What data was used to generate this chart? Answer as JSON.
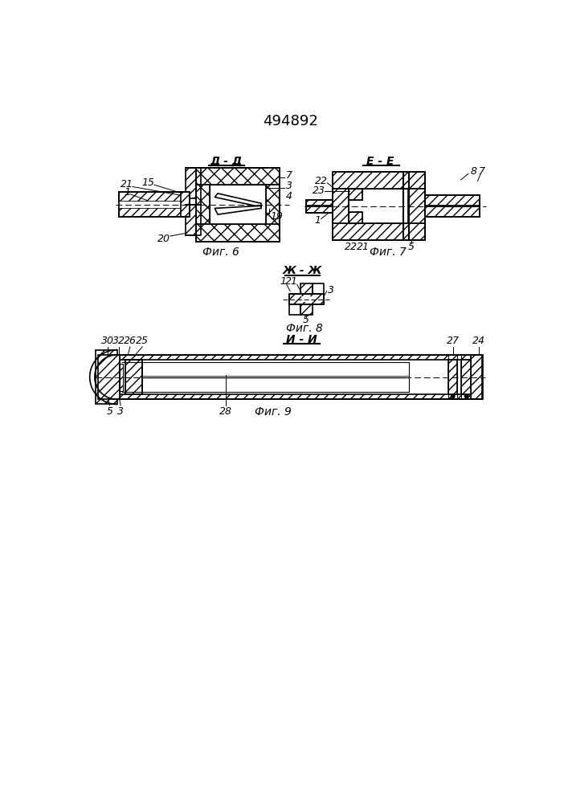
{
  "title": "494892",
  "background": "#ffffff",
  "fig6_caption": "Фиг. 6",
  "fig7_caption": "Фиг. 7",
  "fig8_caption": "Фиг. 8",
  "fig9_caption": "Фиг. 9",
  "section_dd": "Д - Д",
  "section_ee": "E - E",
  "section_zz": "Ж - Ж",
  "section_ii": "И - И",
  "font_size_title": 13,
  "font_size_label": 9,
  "font_size_caption": 10
}
